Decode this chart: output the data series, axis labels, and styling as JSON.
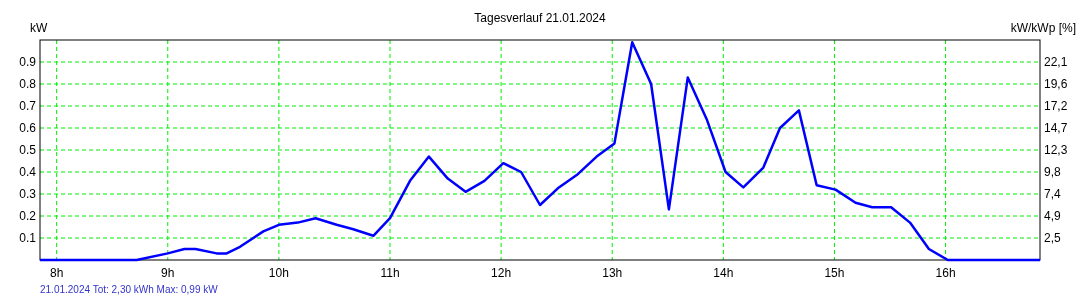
{
  "chart_data": {
    "type": "line",
    "title": "Tagesverlauf 21.01.2024",
    "ylabel": "kW",
    "y2label": "kW/kWp [%]",
    "annotations": [
      "21.01.2024 Tot: 2,30 kWh Max: 0,99 kW"
    ],
    "x": [
      7.85,
      8.72,
      9.0,
      9.15,
      9.25,
      9.44,
      9.53,
      9.65,
      9.86,
      10.0,
      10.17,
      10.33,
      10.52,
      10.67,
      10.85,
      11.0,
      11.18,
      11.35,
      11.52,
      11.68,
      11.85,
      12.02,
      12.18,
      12.35,
      12.52,
      12.69,
      12.86,
      13.02,
      13.18,
      13.35,
      13.51,
      13.68,
      13.85,
      14.02,
      14.18,
      14.36,
      14.51,
      14.68,
      14.84,
      15.01,
      15.19,
      15.34,
      15.51,
      15.68,
      15.85,
      16.02,
      16.85
    ],
    "series": [
      {
        "color": "#0000ff",
        "values": [
          0,
          0,
          0.03,
          0.05,
          0.05,
          0.03,
          0.03,
          0.06,
          0.13,
          0.16,
          0.17,
          0.19,
          0.16,
          0.14,
          0.11,
          0.19,
          0.36,
          0.47,
          0.37,
          0.31,
          0.36,
          0.44,
          0.4,
          0.25,
          0.33,
          0.39,
          0.47,
          0.53,
          0.99,
          0.8,
          0.23,
          0.83,
          0.64,
          0.4,
          0.33,
          0.42,
          0.6,
          0.68,
          0.34,
          0.32,
          0.26,
          0.24,
          0.24,
          0.17,
          0.05,
          0,
          0
        ]
      }
    ],
    "xlim": [
      7.85,
      16.85
    ],
    "ylim": [
      0,
      1
    ],
    "y2lim": [
      0,
      24.56
    ],
    "xticks": [
      {
        "value": 8,
        "label": "8h"
      },
      {
        "value": 9,
        "label": "9h"
      },
      {
        "value": 10,
        "label": "10h"
      },
      {
        "value": 11,
        "label": "11h"
      },
      {
        "value": 12,
        "label": "12h"
      },
      {
        "value": 13,
        "label": "13h"
      },
      {
        "value": 14,
        "label": "14h"
      },
      {
        "value": 15,
        "label": "15h"
      },
      {
        "value": 16,
        "label": "16h"
      }
    ],
    "yticks": [
      0.1,
      0.2,
      0.3,
      0.4,
      0.5,
      0.6,
      0.7,
      0.8,
      0.9
    ],
    "y2ticks": [
      {
        "value": 2.456,
        "label": "2,5"
      },
      {
        "value": 4.912,
        "label": "4,9"
      },
      {
        "value": 7.368,
        "label": "7,4"
      },
      {
        "value": 9.824,
        "label": "9,8"
      },
      {
        "value": 12.28,
        "label": "12,3"
      },
      {
        "value": 14.736,
        "label": "14,7"
      },
      {
        "value": 17.192,
        "label": "17,2"
      },
      {
        "value": 19.648,
        "label": "19,6"
      },
      {
        "value": 22.104,
        "label": "22,1"
      }
    ],
    "grid": true,
    "line_style": "solid"
  }
}
